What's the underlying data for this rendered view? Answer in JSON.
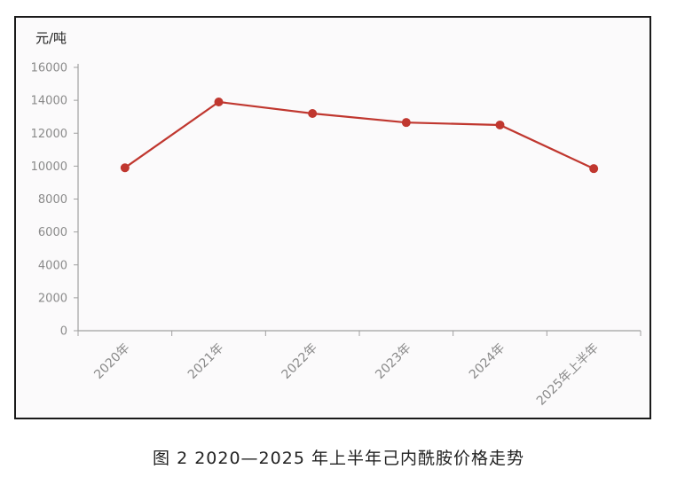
{
  "y_unit": "元/吨",
  "caption": "图 2  2020—2025 年上半年己内酰胺价格走势",
  "chart_data": {
    "type": "line",
    "title": "",
    "xlabel": "",
    "ylabel": "元/吨",
    "categories": [
      "2020年",
      "2021年",
      "2022年",
      "2023年",
      "2024年",
      "2025年上半年"
    ],
    "values": [
      9900,
      13900,
      13200,
      12650,
      12500,
      9850
    ],
    "ylim": [
      0,
      16000
    ],
    "yticks": [
      0,
      2000,
      4000,
      6000,
      8000,
      10000,
      12000,
      14000,
      16000
    ],
    "grid": false,
    "legend": "none",
    "line_color": "#c0372f"
  }
}
